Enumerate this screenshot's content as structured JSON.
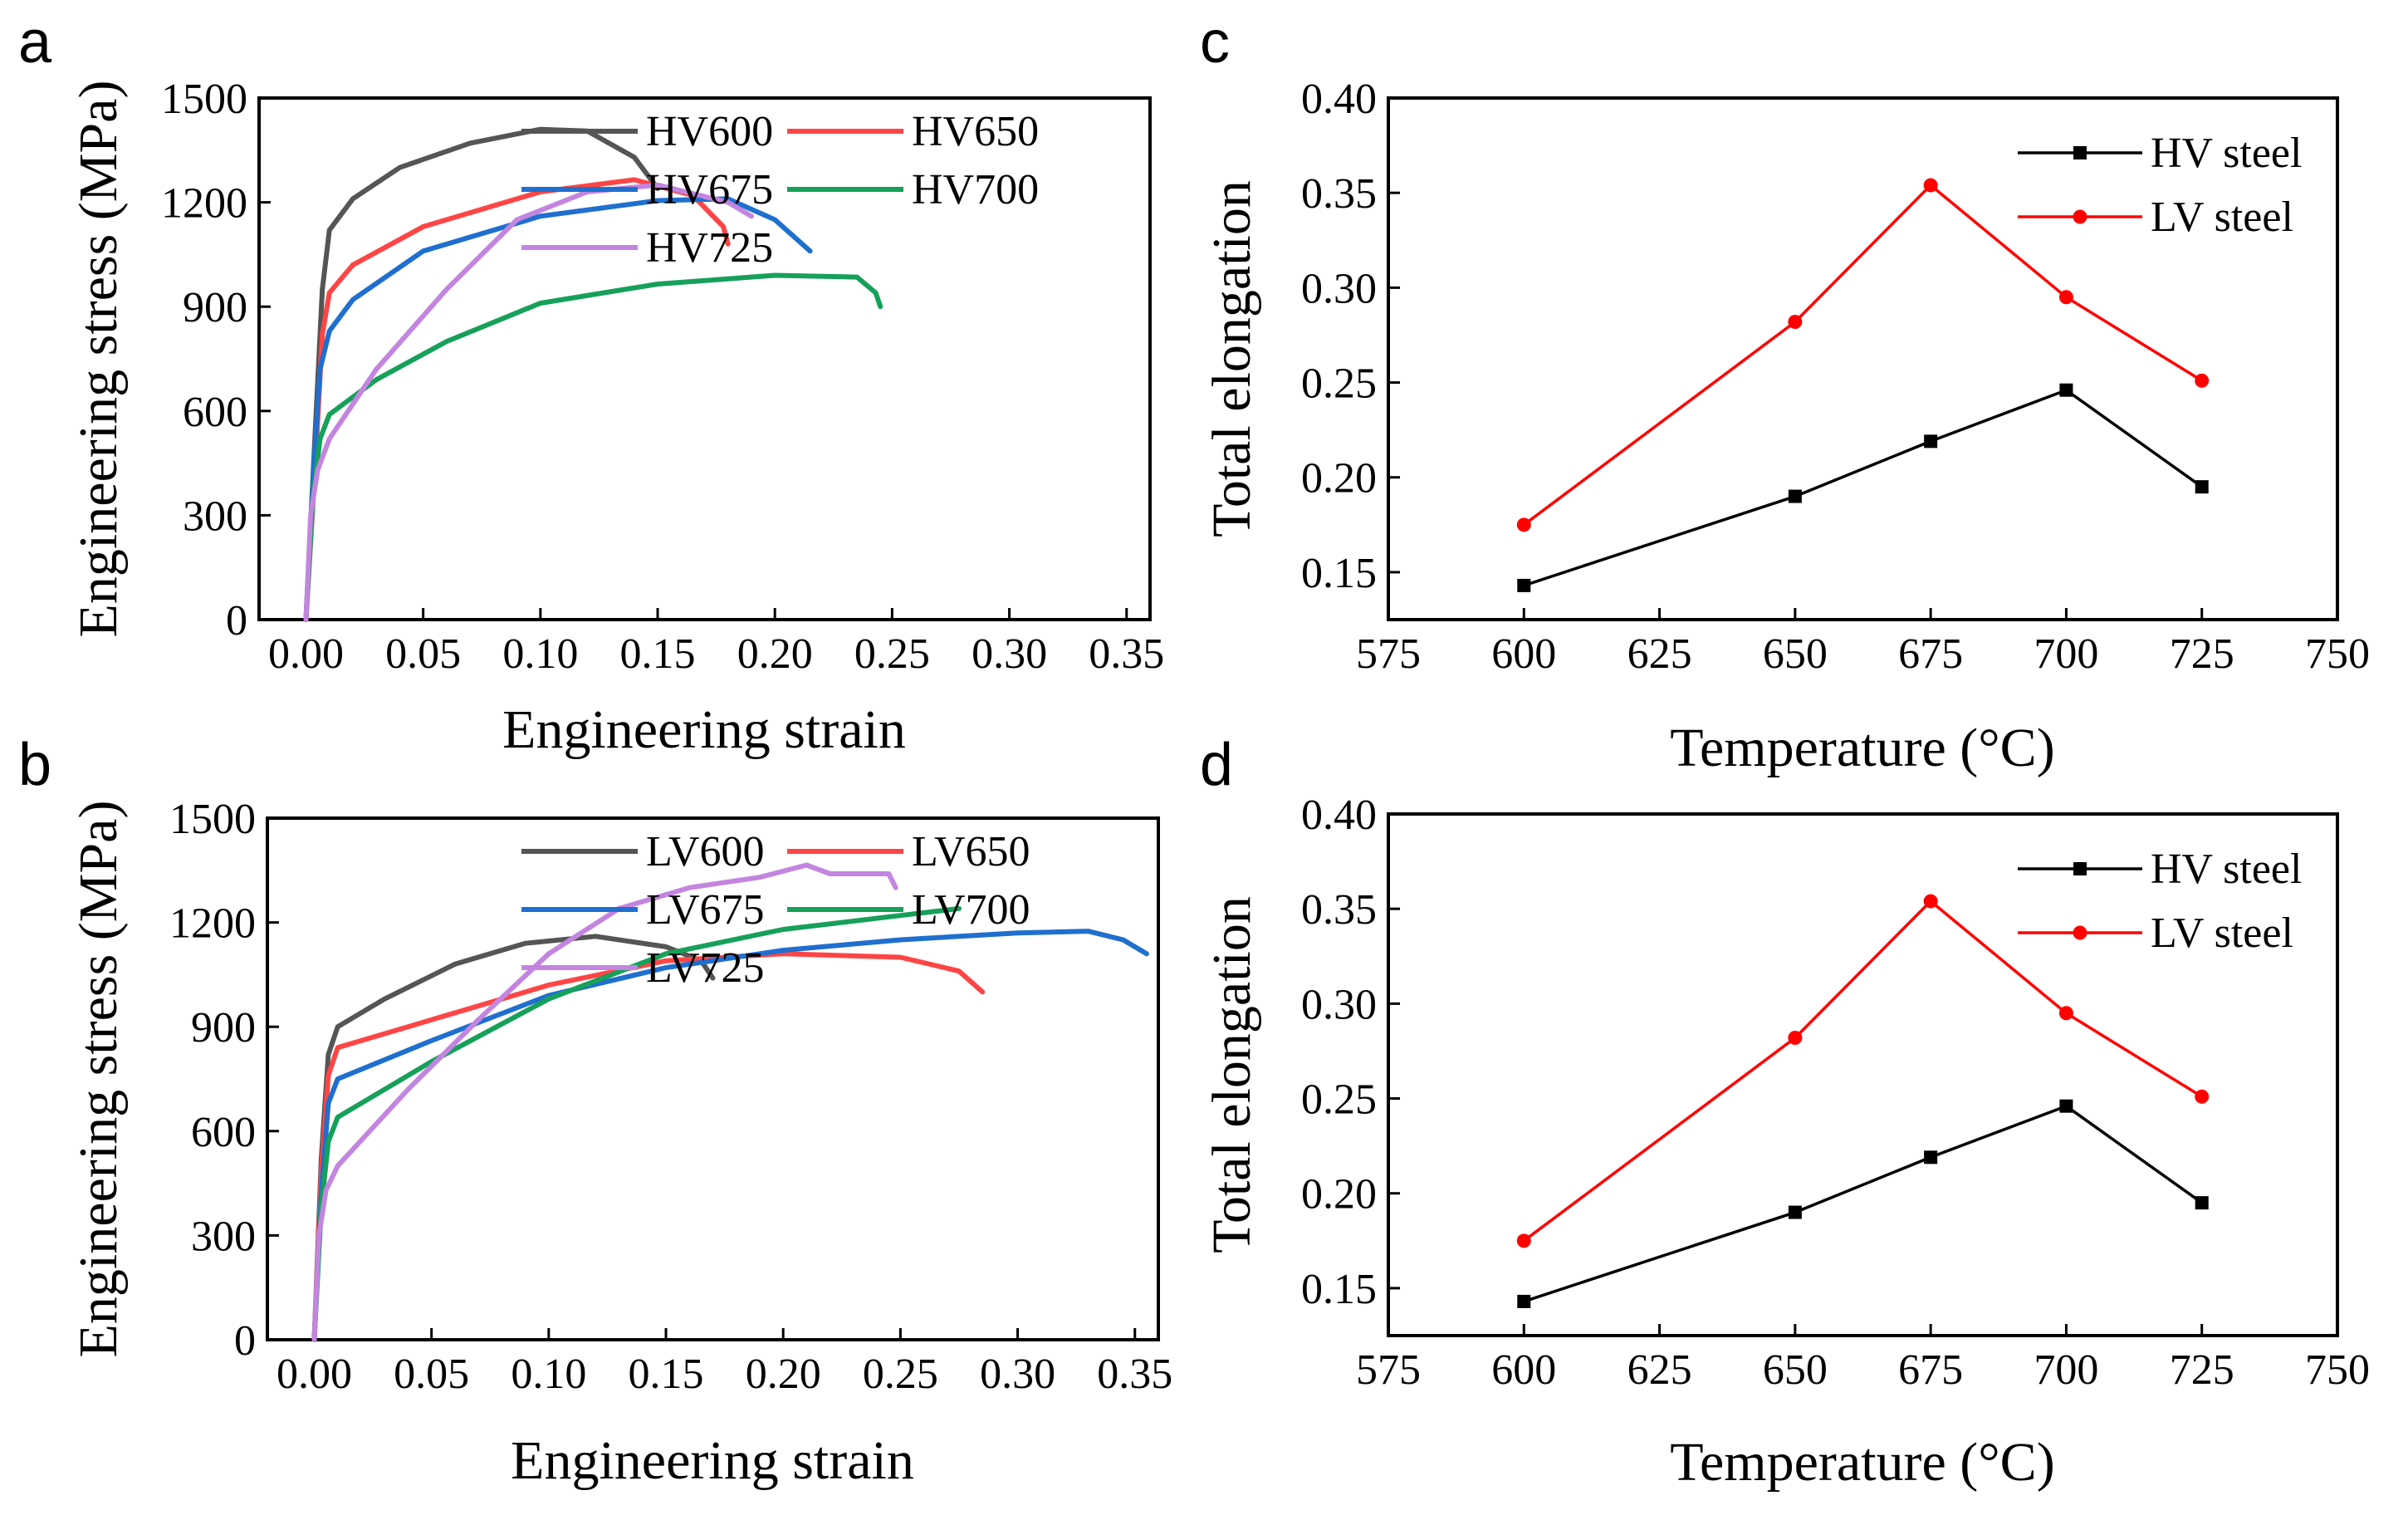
{
  "chart_data": [
    {
      "panel": "a",
      "type": "line",
      "xlabel": "Engineering strain",
      "ylabel": "Engineering stress (MPa)",
      "xlim": [
        -0.02,
        0.36
      ],
      "ylim": [
        0,
        1500
      ],
      "xticks": [
        "0.00",
        "0.05",
        "0.10",
        "0.15",
        "0.20",
        "0.25",
        "0.30",
        "0.35"
      ],
      "yticks": [
        "0",
        "300",
        "600",
        "900",
        "1200",
        "1500"
      ],
      "legend": "center",
      "series": [
        {
          "name": "HV600",
          "color": "#555555",
          "x": [
            0,
            0.004,
            0.007,
            0.01,
            0.02,
            0.04,
            0.07,
            0.1,
            0.12,
            0.14,
            0.15
          ],
          "y": [
            0,
            550,
            950,
            1120,
            1210,
            1300,
            1370,
            1410,
            1405,
            1330,
            1240
          ]
        },
        {
          "name": "HV650",
          "color": "#ff4545",
          "x": [
            0,
            0.004,
            0.007,
            0.01,
            0.02,
            0.05,
            0.1,
            0.14,
            0.165,
            0.178,
            0.18
          ],
          "y": [
            0,
            450,
            820,
            940,
            1020,
            1130,
            1230,
            1265,
            1220,
            1130,
            1080
          ]
        },
        {
          "name": "HV675",
          "color": "#1f6fcf",
          "x": [
            0,
            0.003,
            0.006,
            0.01,
            0.02,
            0.05,
            0.1,
            0.15,
            0.18,
            0.2,
            0.215
          ],
          "y": [
            0,
            400,
            720,
            830,
            920,
            1060,
            1160,
            1205,
            1210,
            1150,
            1060
          ]
        },
        {
          "name": "HV700",
          "color": "#16a05a",
          "x": [
            0,
            0.003,
            0.006,
            0.01,
            0.03,
            0.06,
            0.1,
            0.15,
            0.2,
            0.235,
            0.243,
            0.245
          ],
          "y": [
            0,
            350,
            520,
            590,
            690,
            800,
            910,
            965,
            990,
            985,
            940,
            900
          ]
        },
        {
          "name": "HV725",
          "color": "#c385e0",
          "x": [
            0,
            0.002,
            0.005,
            0.01,
            0.03,
            0.06,
            0.09,
            0.12,
            0.15,
            0.18,
            0.19
          ],
          "y": [
            0,
            300,
            430,
            520,
            720,
            950,
            1150,
            1230,
            1250,
            1200,
            1160
          ]
        }
      ]
    },
    {
      "panel": "b",
      "type": "line",
      "xlabel": "Engineering strain",
      "ylabel": "Engineering stress (MPa)",
      "xlim": [
        -0.02,
        0.36
      ],
      "ylim": [
        0,
        1500
      ],
      "xticks": [
        "0.00",
        "0.05",
        "0.10",
        "0.15",
        "0.20",
        "0.25",
        "0.30",
        "0.35"
      ],
      "yticks": [
        "0",
        "300",
        "600",
        "900",
        "1200",
        "1500"
      ],
      "legend": "center",
      "series": [
        {
          "name": "LV600",
          "color": "#555555",
          "x": [
            0,
            0.003,
            0.006,
            0.01,
            0.03,
            0.06,
            0.09,
            0.12,
            0.15,
            0.165,
            0.17
          ],
          "y": [
            0,
            520,
            820,
            900,
            980,
            1080,
            1140,
            1160,
            1130,
            1090,
            1040
          ]
        },
        {
          "name": "LV650",
          "color": "#ff4545",
          "x": [
            0,
            0.003,
            0.006,
            0.01,
            0.05,
            0.1,
            0.15,
            0.2,
            0.25,
            0.275,
            0.285
          ],
          "y": [
            0,
            480,
            760,
            840,
            920,
            1020,
            1090,
            1110,
            1100,
            1060,
            1000
          ]
        },
        {
          "name": "LV675",
          "color": "#1f6fcf",
          "x": [
            0,
            0.003,
            0.006,
            0.01,
            0.05,
            0.1,
            0.15,
            0.2,
            0.25,
            0.3,
            0.33,
            0.345,
            0.355
          ],
          "y": [
            0,
            420,
            680,
            750,
            860,
            990,
            1070,
            1120,
            1150,
            1170,
            1175,
            1150,
            1110
          ]
        },
        {
          "name": "LV700",
          "color": "#16a05a",
          "x": [
            0,
            0.003,
            0.006,
            0.01,
            0.05,
            0.1,
            0.15,
            0.2,
            0.25,
            0.275
          ],
          "y": [
            0,
            380,
            570,
            640,
            800,
            980,
            1110,
            1180,
            1220,
            1240
          ]
        },
        {
          "name": "LV725",
          "color": "#c385e0",
          "x": [
            0,
            0.002,
            0.005,
            0.01,
            0.04,
            0.07,
            0.1,
            0.13,
            0.16,
            0.19,
            0.21,
            0.22,
            0.245,
            0.248
          ],
          "y": [
            0,
            300,
            430,
            500,
            720,
            920,
            1110,
            1240,
            1300,
            1330,
            1365,
            1340,
            1340,
            1300
          ]
        }
      ]
    },
    {
      "panel": "c",
      "type": "line",
      "xlabel": "Temperature (°C)",
      "ylabel": "Total elongation",
      "xlim": [
        575,
        750
      ],
      "ylim": [
        0.125,
        0.4
      ],
      "xticks": [
        "575",
        "600",
        "625",
        "650",
        "675",
        "700",
        "725",
        "750"
      ],
      "yticks": [
        "0.15",
        "0.20",
        "0.25",
        "0.30",
        "0.35",
        "0.40"
      ],
      "legend": "top-right",
      "categories": [
        600,
        650,
        675,
        700,
        725
      ],
      "series": [
        {
          "name": "HV steel",
          "color": "#000000",
          "marker": "square",
          "values": [
            0.143,
            0.19,
            0.219,
            0.246,
            0.195
          ]
        },
        {
          "name": "LV  steel",
          "color": "#ff0000",
          "marker": "circle",
          "values": [
            0.175,
            0.282,
            0.354,
            0.295,
            0.251
          ]
        }
      ]
    },
    {
      "panel": "d",
      "type": "line",
      "xlabel": "Temperature (°C)",
      "ylabel": "Total elongation",
      "xlim": [
        575,
        750
      ],
      "ylim": [
        0.125,
        0.4
      ],
      "xticks": [
        "575",
        "600",
        "625",
        "650",
        "675",
        "700",
        "725",
        "750"
      ],
      "yticks": [
        "0.15",
        "0.20",
        "0.25",
        "0.30",
        "0.35",
        "0.40"
      ],
      "legend": "top-right",
      "categories": [
        600,
        650,
        675,
        700,
        725
      ],
      "series": [
        {
          "name": "HV steel",
          "color": "#000000",
          "marker": "square",
          "values": [
            0.143,
            0.19,
            0.219,
            0.246,
            0.195
          ]
        },
        {
          "name": "LV  steel",
          "color": "#ff0000",
          "marker": "circle",
          "values": [
            0.175,
            0.282,
            0.354,
            0.295,
            0.251
          ]
        }
      ]
    }
  ]
}
